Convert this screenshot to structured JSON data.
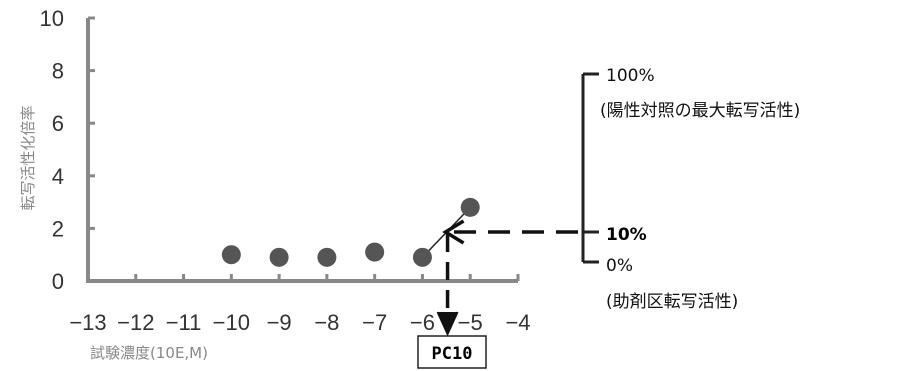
{
  "chart_data": {
    "type": "scatter",
    "xlim": [
      -13,
      -4
    ],
    "ylim": [
      0,
      10
    ],
    "x_ticks": [
      -13,
      -12,
      -11,
      -10,
      -9,
      -8,
      -7,
      -6,
      -5,
      -4
    ],
    "y_ticks": [
      0,
      2,
      4,
      6,
      8,
      10
    ],
    "x_tick_labels": [
      "−13",
      "−12",
      "−11",
      "−10",
      "−9",
      "−8",
      "−7",
      "−6",
      "−5",
      "−4"
    ],
    "y_tick_labels": [
      "0",
      "2",
      "4",
      "6",
      "8",
      "10"
    ],
    "xlabel": "試験濃度(10E,M)",
    "ylabel": "転写活性化倍率",
    "points": [
      {
        "x": -10,
        "y": 1.0
      },
      {
        "x": -9,
        "y": 0.9
      },
      {
        "x": -8,
        "y": 0.9
      },
      {
        "x": -7,
        "y": 1.1
      },
      {
        "x": -6,
        "y": 0.9
      },
      {
        "x": -5,
        "y": 2.8
      }
    ],
    "grid": false,
    "interpolation_line": {
      "from": {
        "x": -6,
        "y": 0.9
      },
      "to": {
        "x": -5,
        "y": 2.8
      }
    },
    "pc10_point": {
      "x": -5.6,
      "y": 2.0
    },
    "annotations": {
      "label_100": "100%",
      "label_100_sub": "(陽性対照の最大転写活性)",
      "label_10": "10%",
      "label_0": "0%",
      "label_0_sub": "(助剤区転写活性)",
      "pc_label": "PC10"
    },
    "colors": {
      "marker": "#555555",
      "axis": "#888888",
      "annotation": "#111111"
    }
  }
}
